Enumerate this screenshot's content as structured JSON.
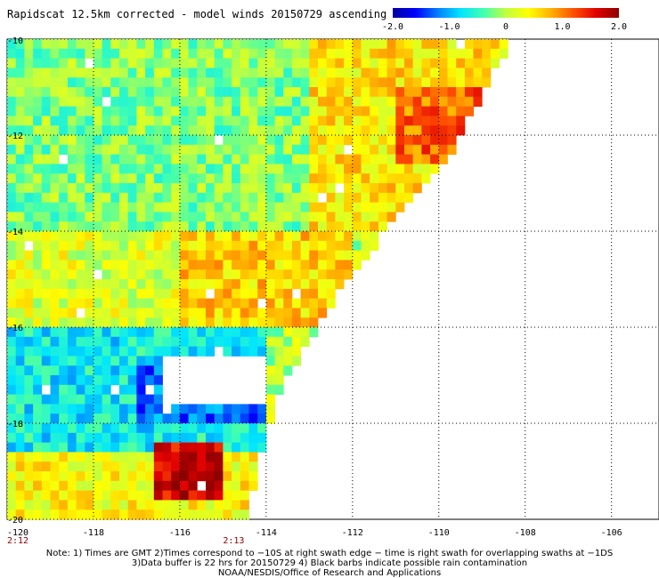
{
  "chart_data": {
    "type": "heatmap",
    "title": "Rapidscat 12.5km corrected - model winds 20150729 ascending",
    "colorbar": {
      "ticks": [
        "-2.0",
        "-1.0",
        "0",
        "1.0",
        "2.0"
      ],
      "range": [
        -2.0,
        2.0
      ],
      "colors": [
        "#00009c",
        "#0000ff",
        "#0080ff",
        "#00e5ff",
        "#40ffb0",
        "#c0ff40",
        "#ffff00",
        "#ffb000",
        "#ff5000",
        "#e00000",
        "#8c0000"
      ]
    },
    "x_axis": {
      "ticks": [
        "-120",
        "-118",
        "-116",
        "-114",
        "-112",
        "-110",
        "-108",
        "-106"
      ],
      "values": [
        -120,
        -118,
        -116,
        -114,
        -112,
        -110,
        -108,
        -106
      ],
      "range": [
        -120,
        -104.9
      ]
    },
    "y_axis": {
      "ticks": [
        "-10",
        "-12",
        "-14",
        "-16",
        "-18",
        "-20"
      ],
      "values": [
        -10,
        -12,
        -14,
        -16,
        -18,
        -20
      ],
      "range": [
        -20,
        -10
      ]
    },
    "time_labels": [
      {
        "text": "2:12",
        "lon": -120
      },
      {
        "text": "2:13",
        "lon": -115
      }
    ],
    "grid": true,
    "swath_edge": [
      {
        "lon": -108.4,
        "lat": -10.0
      },
      {
        "lon": -109.9,
        "lat": -12.5
      },
      {
        "lon": -111.5,
        "lat": -14.2
      },
      {
        "lon": -112.2,
        "lat": -15.0
      },
      {
        "lon": -113.6,
        "lat": -17.0
      },
      {
        "lon": -114.0,
        "lat": -18.0
      },
      {
        "lon": -114.6,
        "lat": -20.0
      }
    ],
    "regions": [
      {
        "lon": -120.0,
        "lat": -10.0,
        "lon2": -113.0,
        "lat2": -14.0,
        "value": -0.2
      },
      {
        "lon": -113.0,
        "lat": -10.0,
        "lon2": -108.0,
        "lat2": -14.0,
        "value": 0.5
      },
      {
        "lon": -120.0,
        "lat": -14.0,
        "lon2": -116.0,
        "lat2": -16.0,
        "value": 0.2
      },
      {
        "lon": -116.0,
        "lat": -14.0,
        "lon2": -112.0,
        "lat2": -16.0,
        "value": 0.6
      },
      {
        "lon": -120.0,
        "lat": -16.0,
        "lon2": -114.0,
        "lat2": -18.5,
        "value": -0.7
      },
      {
        "lon": -120.0,
        "lat": -18.5,
        "lon2": -114.0,
        "lat2": -20.0,
        "value": 0.4
      },
      {
        "lon": -117.0,
        "lat": -16.5,
        "lon2": -114.0,
        "lat2": -18.0,
        "value": -1.8
      },
      {
        "lon": -116.5,
        "lat": -18.3,
        "lon2": -115.0,
        "lat2": -19.5,
        "value": 1.9
      },
      {
        "lon": -111.0,
        "lat": -11.0,
        "lon2": -109.0,
        "lat2": -12.5,
        "value": 1.2
      }
    ],
    "no_data_areas": [
      {
        "lon": -116.3,
        "lat": -16.6,
        "lon2": -114.0,
        "lat2": -17.6
      }
    ]
  },
  "footer": {
    "line1": "Note: 1) Times are GMT 2)Times correspond to −10S at right swath edge − time is right swath for overlapping swaths at −1DS",
    "line2": "3)Data buffer is 22 hrs for 20150729 4) Black barbs indicate possible rain contamination",
    "line3": "NOAA/NESDIS/Office of Research and Applications"
  }
}
